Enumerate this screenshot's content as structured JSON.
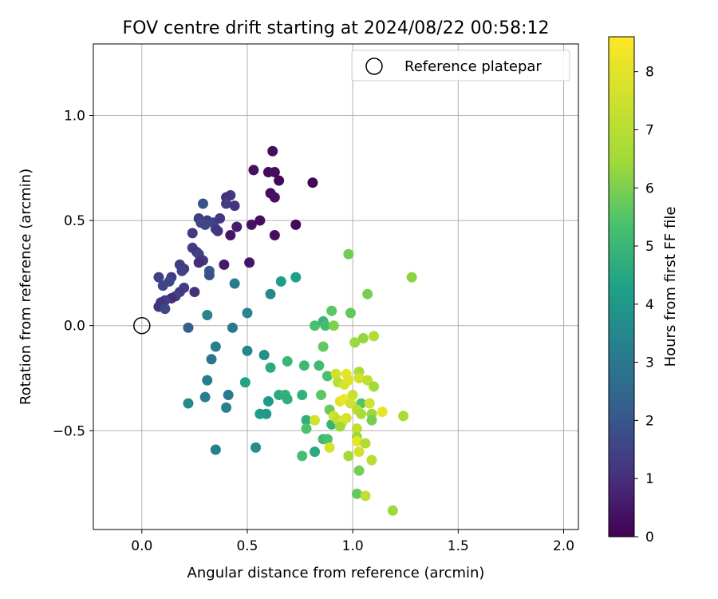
{
  "chart_data": {
    "type": "scatter",
    "title": "FOV centre drift starting at 2024/08/22 00:58:12",
    "xlabel": "Angular distance from reference (arcmin)",
    "ylabel": "Rotation from reference (arcmin)",
    "xlim": [
      -0.23,
      2.07
    ],
    "ylim": [
      -0.97,
      1.34
    ],
    "xticks": [
      "0.0",
      "0.5",
      "1.0",
      "1.5",
      "2.0"
    ],
    "xtick_values": [
      0,
      0.5,
      1.0,
      1.5,
      2.0
    ],
    "yticks": [
      "−0.5",
      "0.0",
      "0.5",
      "1.0"
    ],
    "ytick_values": [
      -0.5,
      0,
      0.5,
      1.0
    ],
    "grid": true,
    "legend": {
      "label": "Reference platepar",
      "position": "upper right"
    },
    "reference_point": {
      "x": 0,
      "y": 0
    },
    "colorbar": {
      "label": "Hours from first FF file",
      "colormap": "viridis",
      "range": [
        0,
        8.6
      ],
      "ticks": [
        "0",
        "1",
        "2",
        "3",
        "4",
        "5",
        "6",
        "7",
        "8"
      ],
      "tick_values": [
        0,
        1,
        2,
        3,
        4,
        5,
        6,
        7,
        8
      ]
    },
    "points": [
      {
        "x": 0.62,
        "y": 0.83,
        "h": 0.3
      },
      {
        "x": 0.53,
        "y": 0.74,
        "h": 0.4
      },
      {
        "x": 0.6,
        "y": 0.73,
        "h": 0.2
      },
      {
        "x": 0.63,
        "y": 0.73,
        "h": 0.3
      },
      {
        "x": 0.65,
        "y": 0.69,
        "h": 0.2
      },
      {
        "x": 0.81,
        "y": 0.68,
        "h": 0.1
      },
      {
        "x": 0.61,
        "y": 0.63,
        "h": 0.3
      },
      {
        "x": 0.63,
        "y": 0.61,
        "h": 0.4
      },
      {
        "x": 0.42,
        "y": 0.62,
        "h": 1.4
      },
      {
        "x": 0.4,
        "y": 0.61,
        "h": 1.2
      },
      {
        "x": 0.29,
        "y": 0.58,
        "h": 2.2
      },
      {
        "x": 0.4,
        "y": 0.58,
        "h": 1.6
      },
      {
        "x": 0.44,
        "y": 0.57,
        "h": 1.3
      },
      {
        "x": 0.56,
        "y": 0.5,
        "h": 0.3
      },
      {
        "x": 0.52,
        "y": 0.48,
        "h": 0.4
      },
      {
        "x": 0.73,
        "y": 0.48,
        "h": 0.2
      },
      {
        "x": 0.45,
        "y": 0.47,
        "h": 0.7
      },
      {
        "x": 0.27,
        "y": 0.51,
        "h": 1.6
      },
      {
        "x": 0.28,
        "y": 0.49,
        "h": 1.8
      },
      {
        "x": 0.31,
        "y": 0.5,
        "h": 1.5
      },
      {
        "x": 0.34,
        "y": 0.49,
        "h": 1.7
      },
      {
        "x": 0.37,
        "y": 0.51,
        "h": 1.4
      },
      {
        "x": 0.3,
        "y": 0.48,
        "h": 1.9
      },
      {
        "x": 0.35,
        "y": 0.46,
        "h": 1.6
      },
      {
        "x": 0.36,
        "y": 0.45,
        "h": 1.3
      },
      {
        "x": 0.24,
        "y": 0.44,
        "h": 1.5
      },
      {
        "x": 0.42,
        "y": 0.43,
        "h": 0.5
      },
      {
        "x": 0.63,
        "y": 0.43,
        "h": 0.3
      },
      {
        "x": 0.24,
        "y": 0.37,
        "h": 1.6
      },
      {
        "x": 0.26,
        "y": 0.35,
        "h": 1.3
      },
      {
        "x": 0.27,
        "y": 0.34,
        "h": 1.7
      },
      {
        "x": 0.29,
        "y": 0.31,
        "h": 1.4
      },
      {
        "x": 0.27,
        "y": 0.3,
        "h": 1.1
      },
      {
        "x": 0.39,
        "y": 0.29,
        "h": 0.6
      },
      {
        "x": 0.51,
        "y": 0.3,
        "h": 0.5
      },
      {
        "x": 0.18,
        "y": 0.29,
        "h": 1.6
      },
      {
        "x": 0.2,
        "y": 0.27,
        "h": 1.5
      },
      {
        "x": 0.19,
        "y": 0.26,
        "h": 1.7
      },
      {
        "x": 0.32,
        "y": 0.26,
        "h": 2.4
      },
      {
        "x": 0.32,
        "y": 0.24,
        "h": 2.2
      },
      {
        "x": 0.08,
        "y": 0.23,
        "h": 1.7
      },
      {
        "x": 0.14,
        "y": 0.23,
        "h": 1.5
      },
      {
        "x": 0.13,
        "y": 0.21,
        "h": 1.9
      },
      {
        "x": 0.1,
        "y": 0.19,
        "h": 1.8
      },
      {
        "x": 0.2,
        "y": 0.18,
        "h": 1.6
      },
      {
        "x": 0.18,
        "y": 0.16,
        "h": 1.4
      },
      {
        "x": 0.25,
        "y": 0.16,
        "h": 1.2
      },
      {
        "x": 0.16,
        "y": 0.14,
        "h": 1.7
      },
      {
        "x": 0.14,
        "y": 0.13,
        "h": 1.1
      },
      {
        "x": 0.11,
        "y": 0.12,
        "h": 1.6
      },
      {
        "x": 0.09,
        "y": 0.11,
        "h": 1.3
      },
      {
        "x": 0.08,
        "y": 0.09,
        "h": 1.2
      },
      {
        "x": 0.11,
        "y": 0.08,
        "h": 1.8
      },
      {
        "x": 0.44,
        "y": 0.2,
        "h": 3.5
      },
      {
        "x": 0.66,
        "y": 0.21,
        "h": 4.7
      },
      {
        "x": 0.73,
        "y": 0.23,
        "h": 4.9
      },
      {
        "x": 0.61,
        "y": 0.15,
        "h": 4.0
      },
      {
        "x": 0.5,
        "y": 0.06,
        "h": 3.9
      },
      {
        "x": 0.31,
        "y": 0.05,
        "h": 3.8
      },
      {
        "x": 0.22,
        "y": -0.01,
        "h": 2.6
      },
      {
        "x": 0.43,
        "y": -0.01,
        "h": 3.4
      },
      {
        "x": 0.35,
        "y": -0.1,
        "h": 3.6
      },
      {
        "x": 0.5,
        "y": -0.12,
        "h": 3.9
      },
      {
        "x": 0.58,
        "y": -0.14,
        "h": 4.3
      },
      {
        "x": 0.33,
        "y": -0.16,
        "h": 3.3
      },
      {
        "x": 0.61,
        "y": -0.2,
        "h": 5.3
      },
      {
        "x": 0.31,
        "y": -0.26,
        "h": 3.7
      },
      {
        "x": 0.49,
        "y": -0.27,
        "h": 5.0
      },
      {
        "x": 0.41,
        "y": -0.33,
        "h": 3.5
      },
      {
        "x": 0.3,
        "y": -0.34,
        "h": 3.6
      },
      {
        "x": 0.6,
        "y": -0.36,
        "h": 4.7
      },
      {
        "x": 0.4,
        "y": -0.39,
        "h": 3.8
      },
      {
        "x": 0.22,
        "y": -0.37,
        "h": 4.1
      },
      {
        "x": 0.56,
        "y": -0.42,
        "h": 4.8
      },
      {
        "x": 0.59,
        "y": -0.42,
        "h": 4.6
      },
      {
        "x": 0.54,
        "y": -0.58,
        "h": 4.3
      },
      {
        "x": 0.35,
        "y": -0.59,
        "h": 3.7
      },
      {
        "x": 0.65,
        "y": -0.33,
        "h": 5.3
      },
      {
        "x": 0.69,
        "y": -0.17,
        "h": 5.7
      },
      {
        "x": 0.68,
        "y": -0.33,
        "h": 5.5
      },
      {
        "x": 0.69,
        "y": -0.35,
        "h": 5.4
      },
      {
        "x": 0.76,
        "y": -0.33,
        "h": 5.5
      },
      {
        "x": 0.77,
        "y": -0.19,
        "h": 5.8
      },
      {
        "x": 0.84,
        "y": -0.19,
        "h": 5.9
      },
      {
        "x": 0.78,
        "y": -0.45,
        "h": 5.4
      },
      {
        "x": 0.78,
        "y": -0.49,
        "h": 6.2
      },
      {
        "x": 0.76,
        "y": -0.62,
        "h": 6.0
      },
      {
        "x": 0.82,
        "y": -0.6,
        "h": 5.2
      },
      {
        "x": 0.86,
        "y": -0.54,
        "h": 5.8
      },
      {
        "x": 0.88,
        "y": -0.54,
        "h": 6.1
      },
      {
        "x": 0.85,
        "y": -0.33,
        "h": 6.4
      },
      {
        "x": 0.88,
        "y": -0.24,
        "h": 6.1
      },
      {
        "x": 0.89,
        "y": -0.4,
        "h": 6.6
      },
      {
        "x": 0.9,
        "y": -0.47,
        "h": 5.6
      },
      {
        "x": 0.82,
        "y": 0.0,
        "h": 6.1
      },
      {
        "x": 0.86,
        "y": 0.02,
        "h": 5.7
      },
      {
        "x": 0.87,
        "y": 0.0,
        "h": 6.0
      },
      {
        "x": 0.9,
        "y": 0.07,
        "h": 6.4
      },
      {
        "x": 0.91,
        "y": 0.0,
        "h": 6.9
      },
      {
        "x": 0.86,
        "y": -0.1,
        "h": 6.5
      },
      {
        "x": 0.98,
        "y": 0.34,
        "h": 6.7
      },
      {
        "x": 0.99,
        "y": 0.06,
        "h": 6.5
      },
      {
        "x": 1.01,
        "y": -0.08,
        "h": 7.3
      },
      {
        "x": 1.07,
        "y": 0.15,
        "h": 6.8
      },
      {
        "x": 1.05,
        "y": -0.06,
        "h": 7.2
      },
      {
        "x": 1.1,
        "y": -0.05,
        "h": 7.6
      },
      {
        "x": 1.28,
        "y": 0.23,
        "h": 7.1
      },
      {
        "x": 0.92,
        "y": -0.23,
        "h": 8.0
      },
      {
        "x": 0.93,
        "y": -0.27,
        "h": 7.7
      },
      {
        "x": 0.96,
        "y": -0.28,
        "h": 8.1
      },
      {
        "x": 0.97,
        "y": -0.23,
        "h": 8.3
      },
      {
        "x": 0.98,
        "y": -0.26,
        "h": 8.2
      },
      {
        "x": 1.03,
        "y": -0.22,
        "h": 7.5
      },
      {
        "x": 1.03,
        "y": -0.25,
        "h": 8.0
      },
      {
        "x": 1.07,
        "y": -0.26,
        "h": 7.8
      },
      {
        "x": 1.1,
        "y": -0.29,
        "h": 7.4
      },
      {
        "x": 1.0,
        "y": -0.33,
        "h": 7.9
      },
      {
        "x": 0.94,
        "y": -0.36,
        "h": 8.2
      },
      {
        "x": 0.96,
        "y": -0.35,
        "h": 8.4
      },
      {
        "x": 0.99,
        "y": -0.37,
        "h": 8.0
      },
      {
        "x": 1.04,
        "y": -0.37,
        "h": 6.3
      },
      {
        "x": 1.02,
        "y": -0.4,
        "h": 7.7
      },
      {
        "x": 1.04,
        "y": -0.42,
        "h": 7.5
      },
      {
        "x": 1.08,
        "y": -0.37,
        "h": 8.0
      },
      {
        "x": 1.09,
        "y": -0.42,
        "h": 7.3
      },
      {
        "x": 1.09,
        "y": -0.45,
        "h": 6.8
      },
      {
        "x": 1.14,
        "y": -0.41,
        "h": 8.3
      },
      {
        "x": 1.24,
        "y": -0.43,
        "h": 7.5
      },
      {
        "x": 0.91,
        "y": -0.43,
        "h": 8.0
      },
      {
        "x": 0.93,
        "y": -0.45,
        "h": 7.8
      },
      {
        "x": 0.95,
        "y": -0.46,
        "h": 8.2
      },
      {
        "x": 0.97,
        "y": -0.44,
        "h": 8.1
      },
      {
        "x": 0.94,
        "y": -0.48,
        "h": 7.4
      },
      {
        "x": 0.82,
        "y": -0.45,
        "h": 8.0
      },
      {
        "x": 1.02,
        "y": -0.49,
        "h": 7.8
      },
      {
        "x": 1.02,
        "y": -0.53,
        "h": 7.3
      },
      {
        "x": 1.02,
        "y": -0.55,
        "h": 8.3
      },
      {
        "x": 1.06,
        "y": -0.56,
        "h": 7.6
      },
      {
        "x": 1.03,
        "y": -0.6,
        "h": 8.0
      },
      {
        "x": 1.09,
        "y": -0.64,
        "h": 7.7
      },
      {
        "x": 0.98,
        "y": -0.62,
        "h": 7.4
      },
      {
        "x": 0.89,
        "y": -0.58,
        "h": 8.1
      },
      {
        "x": 1.03,
        "y": -0.69,
        "h": 6.8
      },
      {
        "x": 1.02,
        "y": -0.8,
        "h": 6.5
      },
      {
        "x": 1.06,
        "y": -0.81,
        "h": 7.8
      },
      {
        "x": 1.19,
        "y": -0.88,
        "h": 7.3
      }
    ]
  }
}
